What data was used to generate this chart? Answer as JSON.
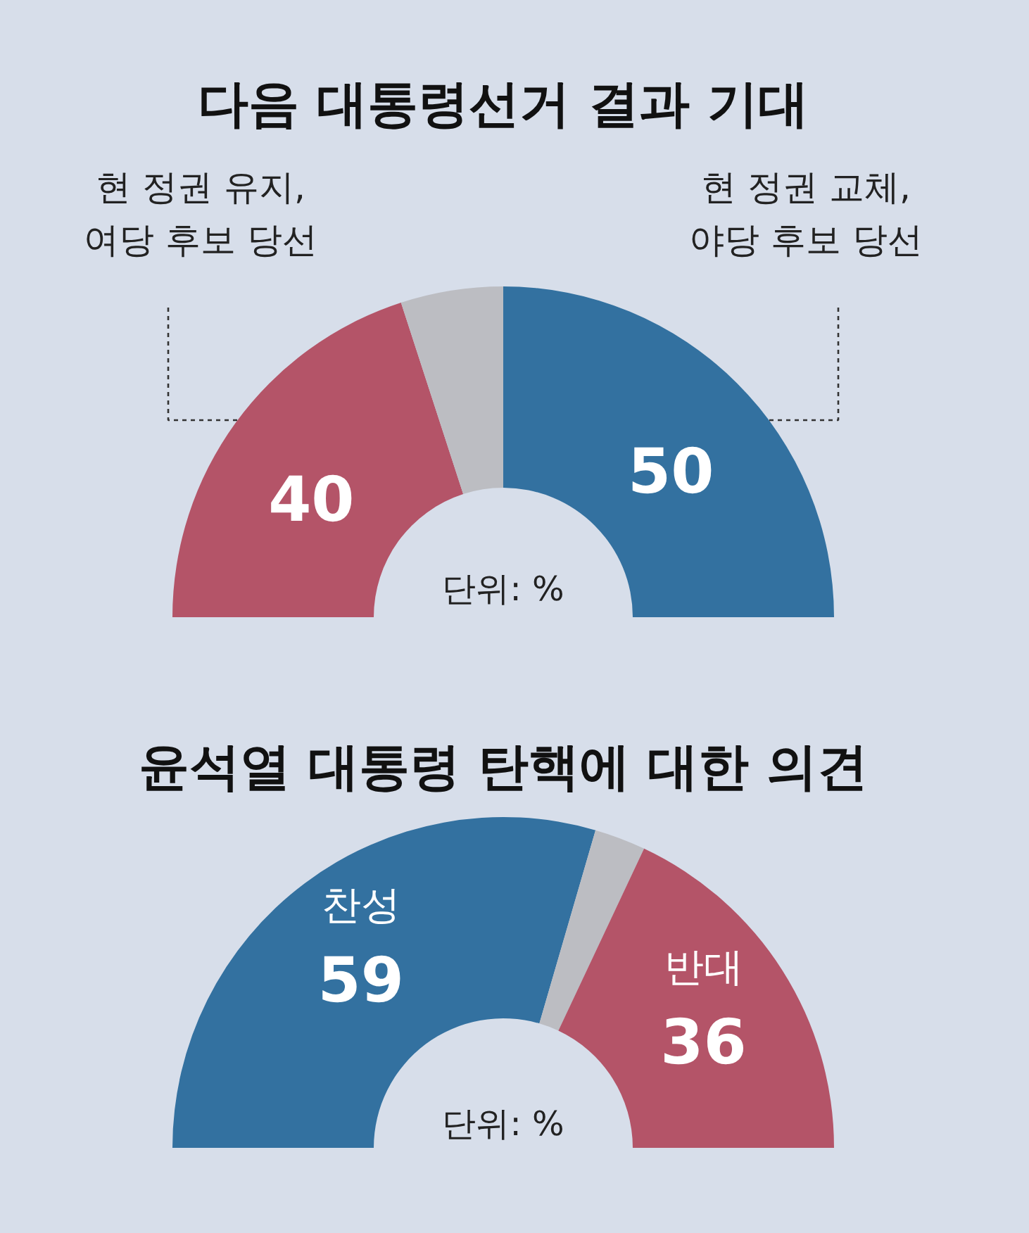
{
  "chart_data": [
    {
      "type": "donut",
      "title": "다음 대통령선거 결과 기대",
      "categories": [
        "현 정권 유지,\n여당 후보 당선",
        null,
        "현 정권 교체,\n야당 후보 당선"
      ],
      "values": [
        40,
        10,
        50
      ],
      "colors": [
        "#b45468",
        "#bcbdc2",
        "#3371a0"
      ],
      "value_labels": [
        "40",
        null,
        "50"
      ],
      "annotations": [
        "단위: %"
      ]
    },
    {
      "type": "donut",
      "title": "윤석열 대통령 탄핵에 대한 의견",
      "categories": [
        "찬성",
        null,
        "반대"
      ],
      "values": [
        59,
        5,
        36
      ],
      "colors": [
        "#3371a0",
        "#bcbdc2",
        "#b45468"
      ],
      "value_labels": [
        "59",
        null,
        "36"
      ],
      "annotations": [
        "단위: %"
      ]
    }
  ]
}
